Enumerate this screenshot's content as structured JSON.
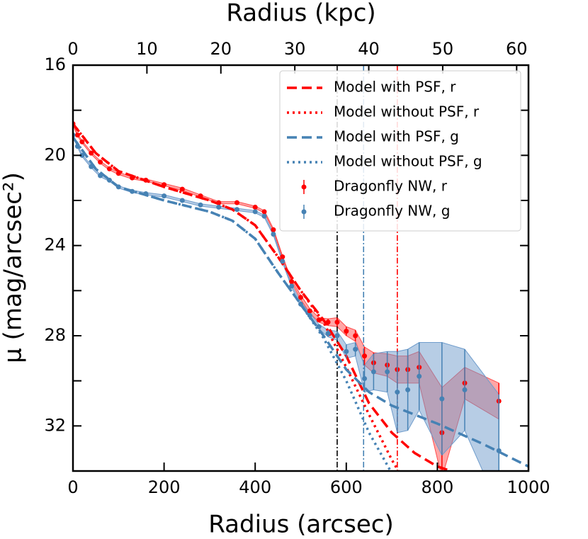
{
  "chart_data": {
    "type": "line",
    "xlabel": "Radius (arcsec)",
    "x2label": "Radius (kpc)",
    "ylabel": "μ (mag/arcsec²)",
    "xlim": [
      0,
      1000
    ],
    "xticks": [
      0,
      200,
      400,
      600,
      800,
      1000
    ],
    "x2lim": [
      0,
      61.6
    ],
    "x2ticks": [
      0,
      10,
      20,
      30,
      40,
      50,
      60
    ],
    "ylim": [
      34,
      16
    ],
    "yticks": [
      16,
      20,
      24,
      28,
      32
    ],
    "yminor_ticks": [
      18,
      22,
      26,
      30,
      34
    ],
    "legend": "upper right",
    "vlines": [
      {
        "x": 580,
        "color": "#000000"
      },
      {
        "x": 638,
        "color": "#4682b4"
      },
      {
        "x": 712,
        "color": "#ff0000"
      }
    ],
    "series": [
      {
        "name": "Model with PSF, r",
        "color": "#ff0000",
        "style": "dashed",
        "x": [
          0,
          50,
          100,
          200,
          300,
          350,
          400,
          450,
          500,
          550,
          600,
          650,
          700,
          750,
          800,
          830
        ],
        "values": [
          18.6,
          19.9,
          20.7,
          21.4,
          22.0,
          22.4,
          23.1,
          24.5,
          26.0,
          27.3,
          28.9,
          31.0,
          32.3,
          33.2,
          33.8,
          34.0
        ]
      },
      {
        "name": "Model without PSF, r",
        "color": "#ff0000",
        "style": "dotted",
        "x": [
          0,
          50,
          100,
          200,
          300,
          350,
          400,
          450,
          500,
          550,
          600,
          650,
          700,
          720
        ],
        "values": [
          18.6,
          19.9,
          20.7,
          21.4,
          22.0,
          22.4,
          23.1,
          24.5,
          26.0,
          27.4,
          29.4,
          31.5,
          33.5,
          34.2
        ]
      },
      {
        "name": "Model with PSF, g",
        "color": "#4682b4",
        "style": "dashed",
        "x": [
          0,
          50,
          100,
          200,
          300,
          350,
          400,
          450,
          500,
          550,
          600,
          650,
          700,
          750,
          800,
          900,
          1000
        ],
        "values": [
          19.2,
          20.6,
          21.4,
          22.0,
          22.5,
          22.9,
          23.7,
          25.2,
          26.6,
          28.0,
          29.5,
          30.5,
          31.1,
          31.5,
          31.9,
          32.8,
          33.8
        ]
      },
      {
        "name": "Model without PSF, g",
        "color": "#4682b4",
        "style": "dotted",
        "x": [
          0,
          50,
          100,
          200,
          300,
          350,
          400,
          450,
          500,
          550,
          600,
          650,
          700
        ],
        "values": [
          19.2,
          20.6,
          21.4,
          22.0,
          22.5,
          22.9,
          23.7,
          25.2,
          26.6,
          28.1,
          30.0,
          32.3,
          34.1
        ]
      },
      {
        "name": "Dragonfly NW, r",
        "color": "#ff0000",
        "style": "points",
        "band": "#ff4d4d",
        "x": [
          0,
          10,
          20,
          40,
          60,
          80,
          100,
          130,
          160,
          200,
          240,
          280,
          320,
          360,
          400,
          420,
          440,
          460,
          480,
          500,
          520,
          540,
          560,
          580,
          600,
          620,
          640,
          660,
          690,
          712,
          735,
          760,
          810,
          860,
          935
        ],
        "values": [
          18.6,
          19.1,
          19.4,
          19.9,
          20.3,
          20.6,
          20.8,
          21.0,
          21.1,
          21.3,
          21.5,
          21.8,
          22.1,
          22.1,
          22.3,
          22.5,
          23.3,
          24.5,
          25.6,
          26.3,
          26.9,
          27.3,
          27.4,
          27.4,
          27.8,
          28.0,
          28.9,
          29.2,
          29.3,
          29.5,
          29.5,
          29.4,
          32.3,
          30.1,
          30.9
        ],
        "errors": [
          0.05,
          0.05,
          0.05,
          0.05,
          0.05,
          0.05,
          0.05,
          0.05,
          0.05,
          0.05,
          0.05,
          0.05,
          0.05,
          0.05,
          0.05,
          0.05,
          0.05,
          0.05,
          0.05,
          0.1,
          0.1,
          0.1,
          0.15,
          0.2,
          0.2,
          0.25,
          0.4,
          0.45,
          0.5,
          0.6,
          0.6,
          0.7,
          2.0,
          0.7,
          0.8
        ]
      },
      {
        "name": "Dragonfly NW, g",
        "color": "#4682b4",
        "style": "points",
        "band": "#6f9ccc",
        "x": [
          0,
          10,
          20,
          40,
          60,
          80,
          100,
          130,
          160,
          200,
          240,
          280,
          320,
          360,
          400,
          420,
          440,
          460,
          480,
          500,
          520,
          540,
          560,
          580,
          600,
          620,
          640,
          660,
          690,
          712,
          735,
          760,
          810,
          860,
          935
        ],
        "values": [
          19.1,
          19.6,
          20.0,
          20.5,
          20.9,
          21.1,
          21.4,
          21.6,
          21.7,
          21.8,
          22.0,
          22.2,
          22.3,
          22.4,
          22.5,
          22.7,
          23.5,
          24.7,
          25.8,
          26.6,
          27.1,
          27.6,
          27.9,
          28.0,
          28.7,
          28.6,
          29.9,
          29.6,
          29.6,
          30.5,
          30.4,
          29.8,
          30.8,
          30.4,
          33.1
        ],
        "errors": [
          0.05,
          0.05,
          0.05,
          0.05,
          0.05,
          0.05,
          0.05,
          0.05,
          0.05,
          0.05,
          0.05,
          0.05,
          0.05,
          0.05,
          0.05,
          0.05,
          0.05,
          0.05,
          0.05,
          0.1,
          0.1,
          0.1,
          0.15,
          0.2,
          0.3,
          0.3,
          0.6,
          0.8,
          0.9,
          1.8,
          1.8,
          1.5,
          2.5,
          1.8,
          2.5
        ]
      }
    ]
  }
}
